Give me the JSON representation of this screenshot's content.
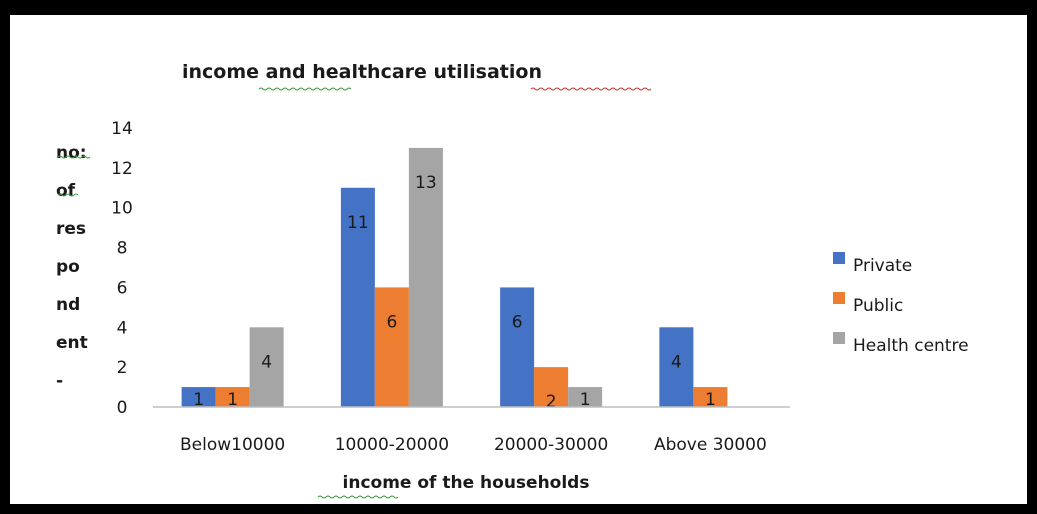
{
  "chart_data": {
    "type": "bar",
    "title": "income and healthcare utilisation",
    "xlabel": "income of the households",
    "ylabel_lines": [
      "no:",
      "of",
      "res",
      "po",
      "nd",
      "ent",
      "-"
    ],
    "categories": [
      "Below10000",
      "10000-20000",
      "20000-30000",
      "Above 30000"
    ],
    "series": [
      {
        "name": "Private",
        "values": [
          1,
          11,
          6,
          4
        ],
        "color": "#4472C4"
      },
      {
        "name": "Public",
        "values": [
          1,
          6,
          2,
          1
        ],
        "color": "#ED7D31"
      },
      {
        "name": "Health centre",
        "values": [
          4,
          13,
          1,
          0
        ],
        "color": "#A5A5A5"
      }
    ],
    "data_labels": [
      [
        "1",
        "11",
        "6",
        "4"
      ],
      [
        "1",
        "6",
        "2",
        "1"
      ],
      [
        "4",
        "13",
        "1",
        ""
      ]
    ],
    "yticks": [
      "0",
      "2",
      "4",
      "6",
      "8",
      "10",
      "12",
      "14"
    ],
    "ylim": [
      0,
      14
    ],
    "grid": false,
    "legend_position": "right"
  }
}
